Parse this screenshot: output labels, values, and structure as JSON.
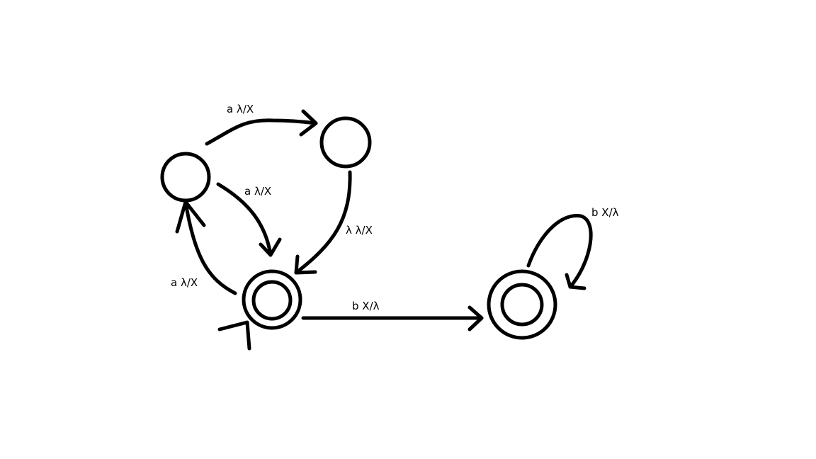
{
  "diagram": {
    "type": "pushdown-automaton",
    "states": [
      {
        "id": "q0",
        "accepting": true,
        "initial": true
      },
      {
        "id": "q1",
        "accepting": false,
        "initial": false
      },
      {
        "id": "q2",
        "accepting": false,
        "initial": false
      },
      {
        "id": "q3",
        "accepting": true,
        "initial": false
      }
    ],
    "transitions": [
      {
        "from": "q1",
        "to": "q2",
        "label": "a λ/X"
      },
      {
        "from": "q1",
        "to": "q0",
        "label": "a λ/X"
      },
      {
        "from": "q2",
        "to": "q0",
        "label": "λ λ/X"
      },
      {
        "from": "q0",
        "to": "q1",
        "label": "a λ/X"
      },
      {
        "from": "q0",
        "to": "q3",
        "label": "b X/λ"
      },
      {
        "from": "q3",
        "to": "q3",
        "label": "b X/λ"
      }
    ],
    "colors": {
      "stroke": "#000000",
      "background": "#ffffff"
    }
  }
}
